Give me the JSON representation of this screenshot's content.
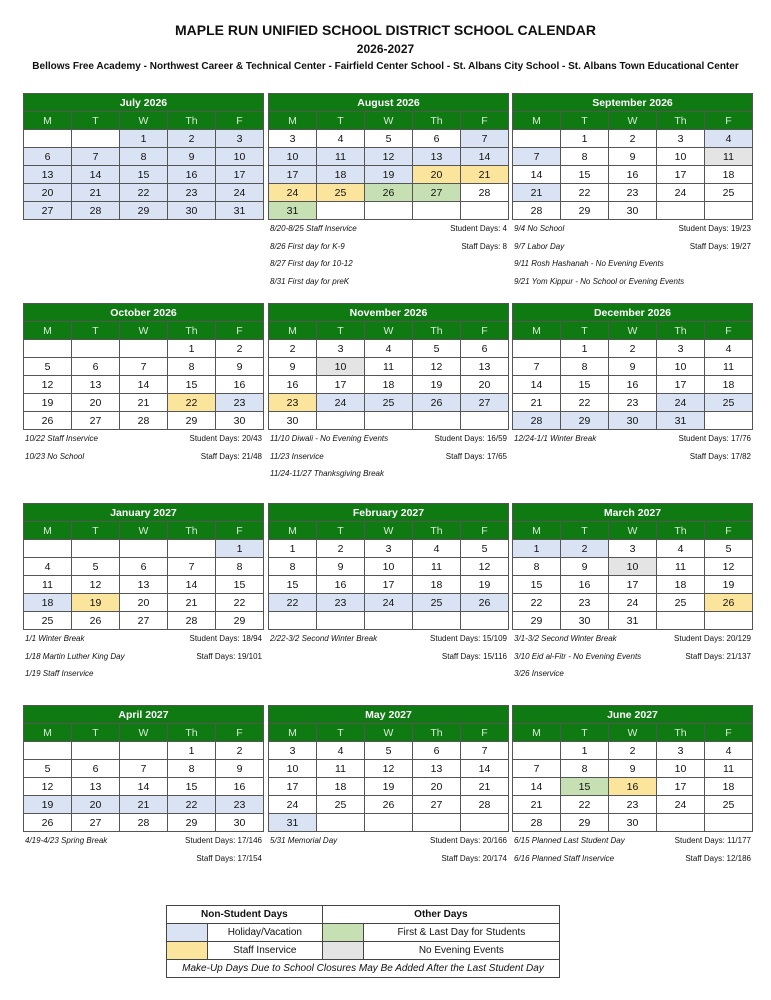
{
  "title": "MAPLE RUN UNIFIED SCHOOL DISTRICT SCHOOL CALENDAR",
  "year": "2026-2027",
  "schools": "Bellows Free Academy - Northwest Career & Technical Center - Fairfield Center School - St. Albans City School - St. Albans Town Educational Center",
  "weekdays": [
    "M",
    "T",
    "W",
    "Th",
    "F"
  ],
  "colors": {
    "header": "#0f7a12",
    "holiday": "#dae3f3",
    "inservice": "#fbe59d",
    "first_last": "#c6e0b4",
    "no_evening": "#e4e4e4"
  },
  "months": [
    {
      "title": "July 2026",
      "weeks": [
        [
          "",
          "",
          "1",
          "2",
          "3"
        ],
        [
          "6",
          "7",
          "8",
          "9",
          "10"
        ],
        [
          "13",
          "14",
          "15",
          "16",
          "17"
        ],
        [
          "20",
          "21",
          "22",
          "23",
          "24"
        ],
        [
          "27",
          "28",
          "29",
          "30",
          "31"
        ]
      ],
      "marks": {
        "1": "h",
        "2": "h",
        "3": "h",
        "6": "h",
        "7": "h",
        "8": "h",
        "9": "h",
        "10": "h",
        "13": "h",
        "14": "h",
        "15": "h",
        "16": "h",
        "17": "h",
        "20": "h",
        "21": "h",
        "22": "h",
        "23": "h",
        "24": "h",
        "27": "h",
        "28": "h",
        "29": "h",
        "30": "h",
        "31": "h"
      },
      "notes": []
    },
    {
      "title": "August 2026",
      "weeks": [
        [
          "3",
          "4",
          "5",
          "6",
          "7"
        ],
        [
          "10",
          "11",
          "12",
          "13",
          "14"
        ],
        [
          "17",
          "18",
          "19",
          "20",
          "21"
        ],
        [
          "24",
          "25",
          "26",
          "27",
          "28"
        ],
        [
          "31",
          "",
          "",
          "",
          ""
        ]
      ],
      "marks": {
        "7": "h",
        "10": "h",
        "11": "h",
        "12": "h",
        "13": "h",
        "14": "h",
        "17": "h",
        "18": "h",
        "19": "h",
        "20": "s",
        "21": "s",
        "24": "s",
        "25": "s",
        "26": "f",
        "27": "f",
        "31": "f"
      },
      "notes": [
        [
          "8/20-8/25 Staff Inservice",
          "Student Days: 4"
        ],
        [
          "8/26 First day for K-9",
          "Staff Days: 8"
        ],
        [
          "8/27 First day for 10-12",
          ""
        ],
        [
          "8/31 First day for preK",
          ""
        ]
      ]
    },
    {
      "title": "September 2026",
      "weeks": [
        [
          "",
          "1",
          "2",
          "3",
          "4"
        ],
        [
          "7",
          "8",
          "9",
          "10",
          "11"
        ],
        [
          "14",
          "15",
          "16",
          "17",
          "18"
        ],
        [
          "21",
          "22",
          "23",
          "24",
          "25"
        ],
        [
          "28",
          "29",
          "30",
          "",
          ""
        ]
      ],
      "marks": {
        "4": "h",
        "7": "h",
        "11": "e",
        "21": "h"
      },
      "notes": [
        [
          "9/4 No School",
          "Student Days: 19/23"
        ],
        [
          "9/7 Labor Day",
          "Staff Days: 19/27"
        ],
        [
          "9/11 Rosh Hashanah - No Evening Events",
          ""
        ],
        [
          "9/21 Yom Kippur - No School or Evening Events",
          ""
        ]
      ]
    },
    {
      "title": "October 2026",
      "weeks": [
        [
          "",
          "",
          "",
          "1",
          "2"
        ],
        [
          "5",
          "6",
          "7",
          "8",
          "9"
        ],
        [
          "12",
          "13",
          "14",
          "15",
          "16"
        ],
        [
          "19",
          "20",
          "21",
          "22",
          "23"
        ],
        [
          "26",
          "27",
          "28",
          "29",
          "30"
        ]
      ],
      "marks": {
        "22": "s",
        "23": "h"
      },
      "notes": [
        [
          "10/22 Staff Inservice",
          "Student Days: 20/43"
        ],
        [
          "10/23 No School",
          "Staff Days: 21/48"
        ]
      ]
    },
    {
      "title": "November 2026",
      "weeks": [
        [
          "2",
          "3",
          "4",
          "5",
          "6"
        ],
        [
          "9",
          "10",
          "11",
          "12",
          "13"
        ],
        [
          "16",
          "17",
          "18",
          "19",
          "20"
        ],
        [
          "23",
          "24",
          "25",
          "26",
          "27"
        ],
        [
          "30",
          "",
          "",
          "",
          ""
        ]
      ],
      "marks": {
        "10": "e",
        "23": "s",
        "24": "h",
        "25": "h",
        "26": "h",
        "27": "h"
      },
      "notes": [
        [
          "11/10 Diwali - No Evening Events",
          "Student Days: 16/59"
        ],
        [
          "11/23 Inservice",
          "Staff Days: 17/65"
        ],
        [
          "11/24-11/27 Thanksgiving Break",
          ""
        ]
      ]
    },
    {
      "title": "December 2026",
      "weeks": [
        [
          "",
          "1",
          "2",
          "3",
          "4"
        ],
        [
          "7",
          "8",
          "9",
          "10",
          "11"
        ],
        [
          "14",
          "15",
          "16",
          "17",
          "18"
        ],
        [
          "21",
          "22",
          "23",
          "24",
          "25"
        ],
        [
          "28",
          "29",
          "30",
          "31",
          ""
        ]
      ],
      "marks": {
        "24": "h",
        "25": "h",
        "28": "h",
        "29": "h",
        "30": "h",
        "31": "h"
      },
      "notes": [
        [
          "12/24-1/1 Winter Break",
          "Student Days: 17/76"
        ],
        [
          "",
          "Staff Days: 17/82"
        ]
      ]
    },
    {
      "title": "January 2027",
      "weeks": [
        [
          "",
          "",
          "",
          "",
          "1"
        ],
        [
          "4",
          "5",
          "6",
          "7",
          "8"
        ],
        [
          "11",
          "12",
          "13",
          "14",
          "15"
        ],
        [
          "18",
          "19",
          "20",
          "21",
          "22"
        ],
        [
          "25",
          "26",
          "27",
          "28",
          "29"
        ]
      ],
      "marks": {
        "1": "h",
        "18": "h",
        "19": "s"
      },
      "notes": [
        [
          "1/1 Winter Break",
          "Student Days: 18/94"
        ],
        [
          "1/18 Martin Luther King Day",
          "Staff Days: 19/101"
        ],
        [
          "1/19 Staff Inservice",
          ""
        ]
      ]
    },
    {
      "title": "February 2027",
      "weeks": [
        [
          "1",
          "2",
          "3",
          "4",
          "5"
        ],
        [
          "8",
          "9",
          "10",
          "11",
          "12"
        ],
        [
          "15",
          "16",
          "17",
          "18",
          "19"
        ],
        [
          "22",
          "23",
          "24",
          "25",
          "26"
        ],
        [
          "",
          "",
          "",
          "",
          ""
        ]
      ],
      "marks": {
        "22": "h",
        "23": "h",
        "24": "h",
        "25": "h",
        "26": "h"
      },
      "notes": [
        [
          "2/22-3/2 Second Winter Break",
          "Student Days: 15/109"
        ],
        [
          "",
          "Staff Days: 15/116"
        ]
      ]
    },
    {
      "title": "March 2027",
      "weeks": [
        [
          "1",
          "2",
          "3",
          "4",
          "5"
        ],
        [
          "8",
          "9",
          "10",
          "11",
          "12"
        ],
        [
          "15",
          "16",
          "17",
          "18",
          "19"
        ],
        [
          "22",
          "23",
          "24",
          "25",
          "26"
        ],
        [
          "29",
          "30",
          "31",
          "",
          ""
        ]
      ],
      "marks": {
        "1": "h",
        "2": "h",
        "10": "e",
        "26": "s"
      },
      "notes": [
        [
          "3/1-3/2 Second Winter Break",
          "Student Days: 20/129"
        ],
        [
          "3/10 Eid al-Fitr - No Evening Events",
          "Staff Days: 21/137"
        ],
        [
          "3/26 Inservice",
          ""
        ]
      ]
    },
    {
      "title": "April 2027",
      "weeks": [
        [
          "",
          "",
          "",
          "1",
          "2"
        ],
        [
          "5",
          "6",
          "7",
          "8",
          "9"
        ],
        [
          "12",
          "13",
          "14",
          "15",
          "16"
        ],
        [
          "19",
          "20",
          "21",
          "22",
          "23"
        ],
        [
          "26",
          "27",
          "28",
          "29",
          "30"
        ]
      ],
      "marks": {
        "19": "h",
        "20": "h",
        "21": "h",
        "22": "h",
        "23": "h"
      },
      "notes": [
        [
          "4/19-4/23 Spring Break",
          "Student Days: 17/146"
        ],
        [
          "",
          "Staff Days: 17/154"
        ]
      ]
    },
    {
      "title": "May 2027",
      "weeks": [
        [
          "3",
          "4",
          "5",
          "6",
          "7"
        ],
        [
          "10",
          "11",
          "12",
          "13",
          "14"
        ],
        [
          "17",
          "18",
          "19",
          "20",
          "21"
        ],
        [
          "24",
          "25",
          "26",
          "27",
          "28"
        ],
        [
          "31",
          "",
          "",
          "",
          ""
        ]
      ],
      "marks": {
        "31": "h"
      },
      "notes": [
        [
          "5/31 Memorial Day",
          "Student Days: 20/166"
        ],
        [
          "",
          "Staff Days: 20/174"
        ]
      ]
    },
    {
      "title": "June 2027",
      "weeks": [
        [
          "",
          "1",
          "2",
          "3",
          "4"
        ],
        [
          "7",
          "8",
          "9",
          "10",
          "11"
        ],
        [
          "14",
          "15",
          "16",
          "17",
          "18"
        ],
        [
          "21",
          "22",
          "23",
          "24",
          "25"
        ],
        [
          "28",
          "29",
          "30",
          "",
          ""
        ]
      ],
      "marks": {
        "15": "f",
        "16": "s"
      },
      "notes": [
        [
          "6/15 Planned Last Student Day",
          "Student Days: 11/177"
        ],
        [
          "6/16 Planned Staff Inservice",
          "Staff Days: 12/186"
        ]
      ]
    }
  ],
  "legend": {
    "non_student_heading": "Non-Student Days",
    "other_heading": "Other Days",
    "holiday": "Holiday/Vacation",
    "first_last": "First & Last Day for Students",
    "inservice": "Staff Inservice",
    "no_evening": "No Evening Events",
    "footer": "Make-Up Days Due to School Closures May Be Added After the Last Student Day"
  }
}
